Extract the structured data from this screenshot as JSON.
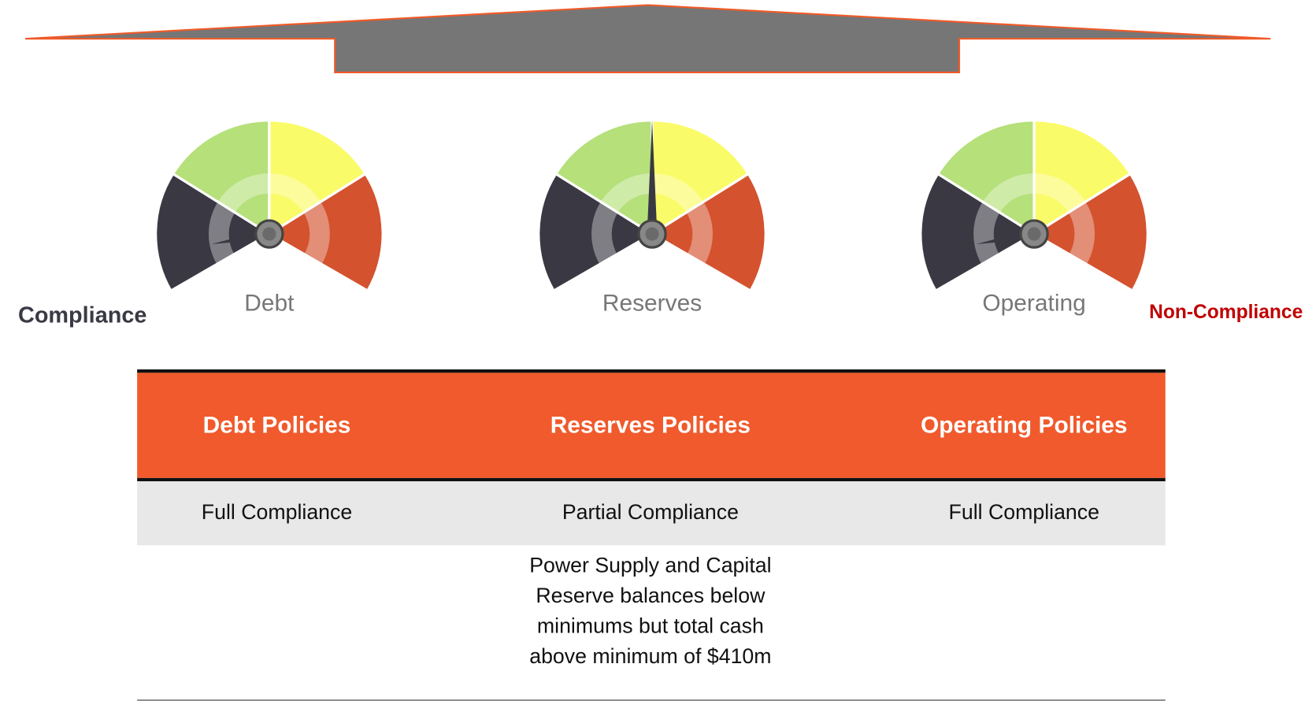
{
  "gauges": [
    {
      "label": "Debt"
    },
    {
      "label": "Reserves"
    },
    {
      "label": "Operating"
    }
  ],
  "scale": {
    "left": "Compliance",
    "right": "Non-Compliance"
  },
  "table": {
    "headers": [
      "Debt Policies",
      "Reserves Policies",
      "Operating Policies"
    ],
    "rows": [
      [
        "Full Compliance",
        "Partial Compliance",
        "Full Compliance"
      ],
      [
        null,
        "Power Supply and Capital Reserve balances below minimums but total cash above minimum of $410m",
        null
      ]
    ]
  }
}
